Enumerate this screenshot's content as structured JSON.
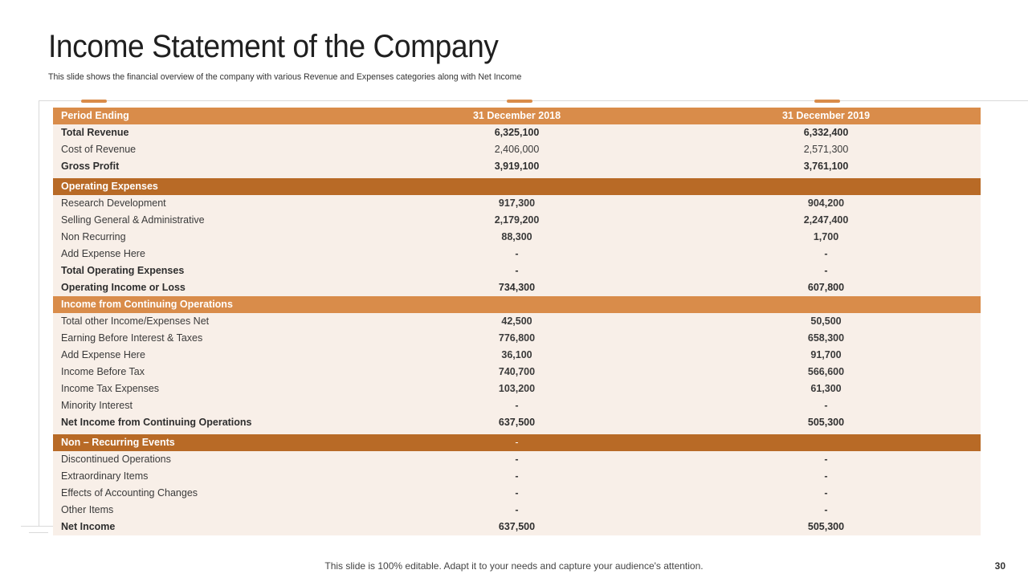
{
  "title": "Income Statement of the Company",
  "subtitle": "This slide shows the financial overview of the company with various Revenue and Expenses categories along with Net Income",
  "colors": {
    "accent_light": "#d98c4a",
    "accent_dark": "#b86a26",
    "row_bg": "#f8efe8"
  },
  "table": {
    "header": {
      "label": "Period Ending",
      "col1": "31 December 2018",
      "col2": "31 December 2019"
    },
    "rows": [
      {
        "label": "Total Revenue",
        "v2018": "6,325,100",
        "v2019": "6,332,400"
      },
      {
        "label": "Cost of Revenue",
        "v2018": "2,406,000",
        "v2019": "2,571,300"
      },
      {
        "label": "Gross Profit",
        "v2018": "3,919,100",
        "v2019": "3,761,100"
      },
      {
        "label": "Operating Expenses",
        "v2018": "",
        "v2019": ""
      },
      {
        "label": "Research Development",
        "v2018": "917,300",
        "v2019": "904,200"
      },
      {
        "label": "Selling General & Administrative",
        "v2018": "2,179,200",
        "v2019": "2,247,400"
      },
      {
        "label": "Non Recurring",
        "v2018": "88,300",
        "v2019": "1,700"
      },
      {
        "label": "Add Expense Here",
        "v2018": "-",
        "v2019": "-"
      },
      {
        "label": "Total Operating Expenses",
        "v2018": "-",
        "v2019": "-"
      },
      {
        "label": "Operating Income or Loss",
        "v2018": "734,300",
        "v2019": "607,800"
      },
      {
        "label": "Income from Continuing Operations",
        "v2018": "",
        "v2019": ""
      },
      {
        "label": "Total other Income/Expenses Net",
        "v2018": "42,500",
        "v2019": "50,500"
      },
      {
        "label": "Earning Before Interest & Taxes",
        "v2018": "776,800",
        "v2019": "658,300"
      },
      {
        "label": "Add Expense Here",
        "v2018": "36,100",
        "v2019": "91,700"
      },
      {
        "label": "Income Before Tax",
        "v2018": "740,700",
        "v2019": "566,600"
      },
      {
        "label": "Income Tax Expenses",
        "v2018": "103,200",
        "v2019": "61,300"
      },
      {
        "label": "Minority Interest",
        "v2018": "-",
        "v2019": "-"
      },
      {
        "label": "Net Income from Continuing Operations",
        "v2018": "637,500",
        "v2019": "505,300"
      },
      {
        "label": "Non – Recurring Events",
        "v2018": "-",
        "v2019": ""
      },
      {
        "label": "Discontinued Operations",
        "v2018": "-",
        "v2019": "-"
      },
      {
        "label": "Extraordinary Items",
        "v2018": "-",
        "v2019": "-"
      },
      {
        "label": "Effects of Accounting Changes",
        "v2018": "-",
        "v2019": "-"
      },
      {
        "label": "Other Items",
        "v2018": "-",
        "v2019": "-"
      },
      {
        "label": "Net Income",
        "v2018": "637,500",
        "v2019": "505,300"
      }
    ]
  },
  "footer": "This slide is 100% editable. Adapt it to your needs and capture your audience's attention.",
  "page_number": "30"
}
